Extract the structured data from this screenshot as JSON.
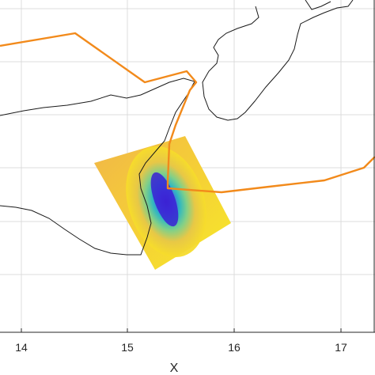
{
  "plot": {
    "xlabel": "X",
    "x_ticks": [
      "14",
      "15",
      "16",
      "17"
    ],
    "x_range": [
      13.8,
      17.3
    ]
  },
  "colors": {
    "coastline": "#1a1a1a",
    "track": "#f28a1b",
    "grid": "#dcdcdc",
    "axis": "#262626",
    "field_high": "#f5e61e",
    "field_mid": "#2bb7b0",
    "field_low": "#3a2bd6"
  }
}
